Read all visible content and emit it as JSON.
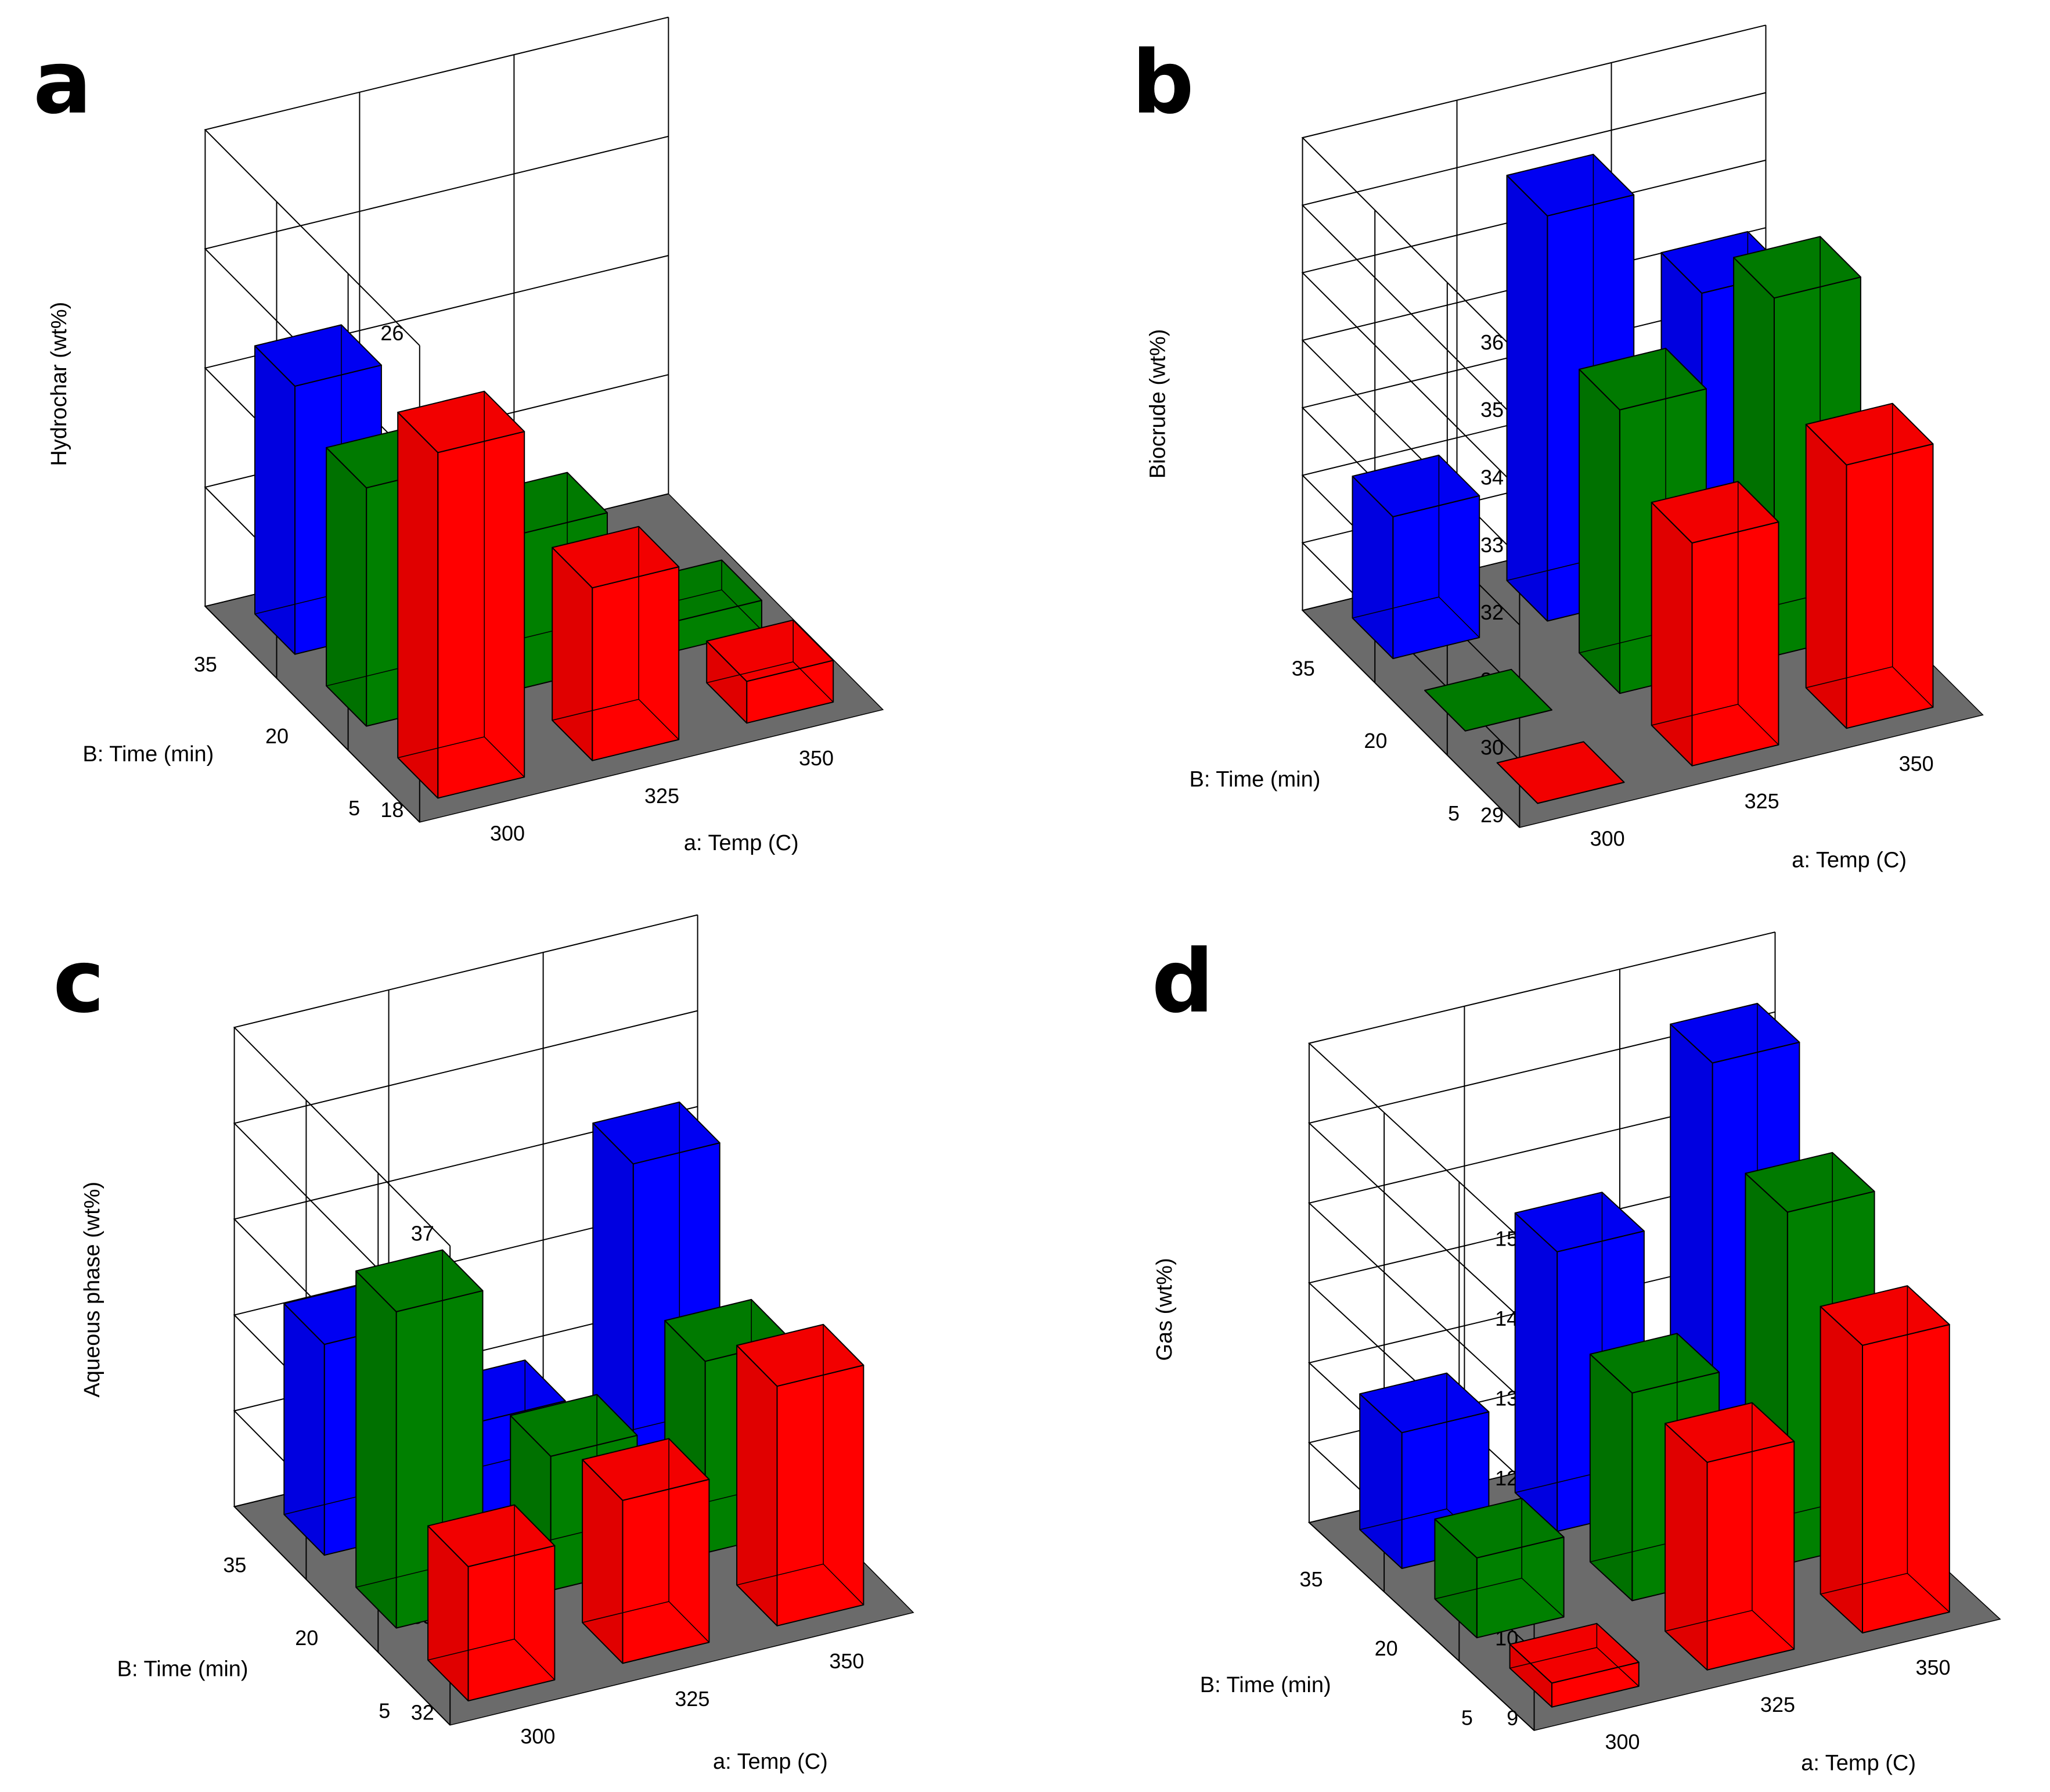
{
  "colors": {
    "B_35": "#0000ff",
    "B_20": "#008000",
    "B_5": "#ff0000",
    "floor": "#6b6b6b"
  },
  "chart_data": [
    {
      "panel": "a",
      "type": "bar3d",
      "zlabel": "Hydrochar  (wt%)",
      "zlim": [
        18,
        26
      ],
      "zticks": [
        "18",
        "20",
        "22",
        "24",
        "26"
      ],
      "xlabel": "a: Temp (C)",
      "xticks": [
        "300",
        "325",
        "350"
      ],
      "ylabel": "B: Time (min)",
      "yticks": [
        "35",
        "20",
        "5"
      ],
      "bars": [
        {
          "temp": 300,
          "time": 35,
          "value": 22.5
        },
        {
          "temp": 300,
          "time": 20,
          "value": 22.0
        },
        {
          "temp": 300,
          "time": 5,
          "value": 23.8
        },
        {
          "temp": 325,
          "time": 20,
          "value": 20.6
        },
        {
          "temp": 325,
          "time": 5,
          "value": 20.9
        },
        {
          "temp": 350,
          "time": 20,
          "value": 18.5
        },
        {
          "temp": 350,
          "time": 5,
          "value": 18.7
        }
      ]
    },
    {
      "panel": "b",
      "type": "bar3d",
      "zlabel": "Biocrude  (wt%)",
      "zlim": [
        29,
        36
      ],
      "zticks": [
        "29",
        "30",
        "31",
        "32",
        "33",
        "34",
        "35",
        "36"
      ],
      "xlabel": "a: Temp (C)",
      "xticks": [
        "300",
        "325",
        "350"
      ],
      "ylabel": "B: Time (min)",
      "yticks": [
        "35",
        "20",
        "5"
      ],
      "bars": [
        {
          "temp": 300,
          "time": 35,
          "value": 31.1
        },
        {
          "temp": 300,
          "time": 20,
          "value": 29.0
        },
        {
          "temp": 300,
          "time": 5,
          "value": 29.0
        },
        {
          "temp": 325,
          "time": 35,
          "value": 35.0
        },
        {
          "temp": 325,
          "time": 20,
          "value": 33.2
        },
        {
          "temp": 325,
          "time": 5,
          "value": 32.3
        },
        {
          "temp": 350,
          "time": 35,
          "value": 33.3
        },
        {
          "temp": 350,
          "time": 20,
          "value": 34.3
        },
        {
          "temp": 350,
          "time": 5,
          "value": 32.9
        }
      ]
    },
    {
      "panel": "c",
      "type": "bar3d",
      "zlabel": "Aqueous phase  (wt%)",
      "zlim": [
        32,
        37
      ],
      "zticks": [
        "32",
        "33",
        "34",
        "35",
        "36",
        "37"
      ],
      "xlabel": "a: Temp (C)",
      "xticks": [
        "300",
        "325",
        "350"
      ],
      "ylabel": "B: Time (min)",
      "yticks": [
        "35",
        "20",
        "5"
      ],
      "bars": [
        {
          "temp": 300,
          "time": 35,
          "value": 34.2
        },
        {
          "temp": 300,
          "time": 20,
          "value": 35.3
        },
        {
          "temp": 300,
          "time": 5,
          "value": 33.4
        },
        {
          "temp": 325,
          "time": 35,
          "value": 33.0
        },
        {
          "temp": 325,
          "time": 20,
          "value": 33.4
        },
        {
          "temp": 325,
          "time": 5,
          "value": 33.7
        },
        {
          "temp": 350,
          "time": 35,
          "value": 35.3
        },
        {
          "temp": 350,
          "time": 20,
          "value": 34.0
        },
        {
          "temp": 350,
          "time": 5,
          "value": 34.5
        }
      ]
    },
    {
      "panel": "d",
      "type": "bar3d",
      "zlabel": "Gas  (wt%)",
      "zlim": [
        9,
        15
      ],
      "zticks": [
        "9",
        "10",
        "11",
        "12",
        "13",
        "14",
        "15"
      ],
      "xlabel": "a: Temp (C)",
      "xticks": [
        "300",
        "325",
        "350"
      ],
      "ylabel": "B: Time (min)",
      "yticks": [
        "35",
        "20",
        "5"
      ],
      "bars": [
        {
          "temp": 300,
          "time": 35,
          "value": 10.7
        },
        {
          "temp": 300,
          "time": 20,
          "value": 10.0
        },
        {
          "temp": 300,
          "time": 5,
          "value": 9.3
        },
        {
          "temp": 325,
          "time": 35,
          "value": 12.5
        },
        {
          "temp": 325,
          "time": 20,
          "value": 11.6
        },
        {
          "temp": 325,
          "time": 5,
          "value": 11.6
        },
        {
          "temp": 350,
          "time": 35,
          "value": 14.4
        },
        {
          "temp": 350,
          "time": 20,
          "value": 13.4
        },
        {
          "temp": 350,
          "time": 5,
          "value": 12.6
        }
      ]
    }
  ]
}
